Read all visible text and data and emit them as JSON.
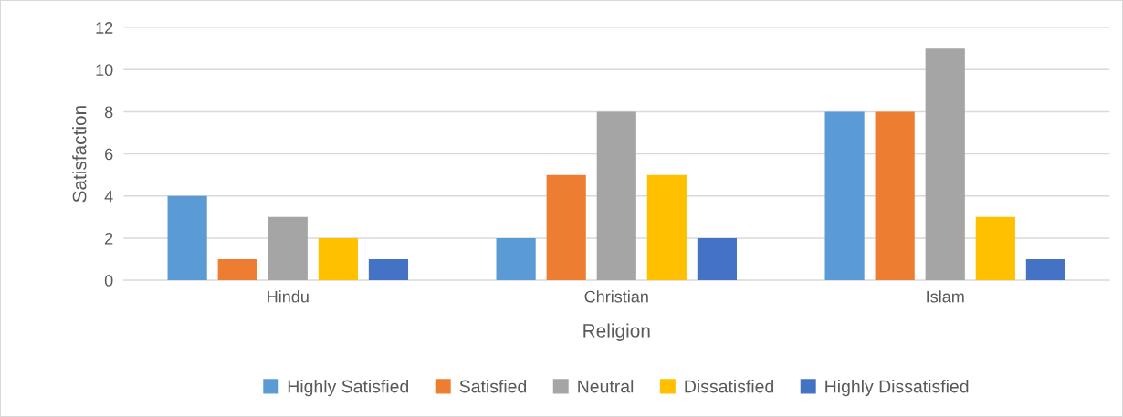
{
  "chart_data": {
    "type": "bar",
    "xlabel": "Religion",
    "ylabel": "Satisfaction",
    "categories": [
      "Hindu",
      "Christian",
      "Islam"
    ],
    "series": [
      {
        "name": "Highly Satisfied",
        "color": "#5b9bd5",
        "values": [
          4,
          2,
          8
        ]
      },
      {
        "name": "Satisfied",
        "color": "#ed7d31",
        "values": [
          1,
          5,
          8
        ]
      },
      {
        "name": "Neutral",
        "color": "#a5a5a5",
        "values": [
          3,
          8,
          11
        ]
      },
      {
        "name": "Dissatisfied",
        "color": "#ffc000",
        "values": [
          2,
          5,
          3
        ]
      },
      {
        "name": "Highly Dissatisfied",
        "color": "#4472c4",
        "values": [
          1,
          2,
          1
        ]
      }
    ],
    "ylim": [
      0,
      12
    ],
    "yticks": [
      0,
      2,
      4,
      6,
      8,
      10,
      12
    ],
    "grid": "y",
    "legend": "bottom"
  }
}
